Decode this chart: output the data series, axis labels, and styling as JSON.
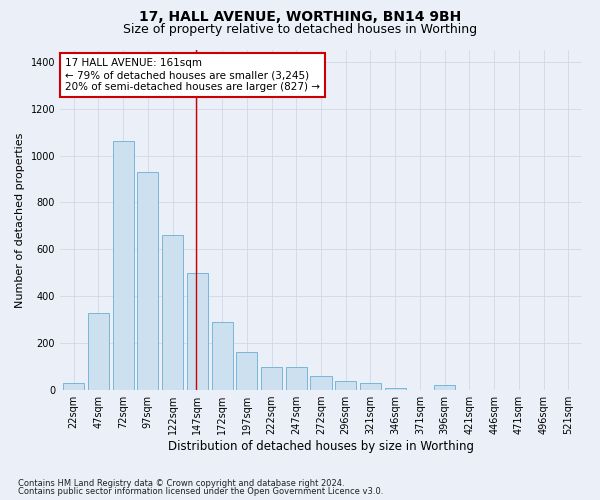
{
  "title": "17, HALL AVENUE, WORTHING, BN14 9BH",
  "subtitle": "Size of property relative to detached houses in Worthing",
  "xlabel": "Distribution of detached houses by size in Worthing",
  "ylabel": "Number of detached properties",
  "footnote1": "Contains HM Land Registry data © Crown copyright and database right 2024.",
  "footnote2": "Contains public sector information licensed under the Open Government Licence v3.0.",
  "bar_labels": [
    "22sqm",
    "47sqm",
    "72sqm",
    "97sqm",
    "122sqm",
    "147sqm",
    "172sqm",
    "197sqm",
    "222sqm",
    "247sqm",
    "272sqm",
    "296sqm",
    "321sqm",
    "346sqm",
    "371sqm",
    "396sqm",
    "421sqm",
    "446sqm",
    "471sqm",
    "496sqm",
    "521sqm"
  ],
  "bar_values": [
    30,
    330,
    1060,
    930,
    660,
    500,
    290,
    160,
    100,
    100,
    60,
    40,
    30,
    10,
    0,
    20,
    0,
    0,
    0,
    0,
    0
  ],
  "bar_color": "#cce0f0",
  "bar_edge_color": "#6aaed6",
  "annotation_line1": "17 HALL AVENUE: 161sqm",
  "annotation_line2": "← 79% of detached houses are smaller (3,245)",
  "annotation_line3": "20% of semi-detached houses are larger (827) →",
  "annotation_box_color": "#ffffff",
  "annotation_box_edge": "#cc0000",
  "vline_color": "#cc0000",
  "vline_x_index": 5,
  "ylim": [
    0,
    1450
  ],
  "yticks": [
    0,
    200,
    400,
    600,
    800,
    1000,
    1200,
    1400
  ],
  "grid_color": "#d0d8e8",
  "background_color": "#eaeff8",
  "title_fontsize": 10,
  "subtitle_fontsize": 9,
  "xlabel_fontsize": 8.5,
  "ylabel_fontsize": 8,
  "tick_fontsize": 7,
  "annotation_fontsize": 7.5,
  "footnote_fontsize": 6
}
